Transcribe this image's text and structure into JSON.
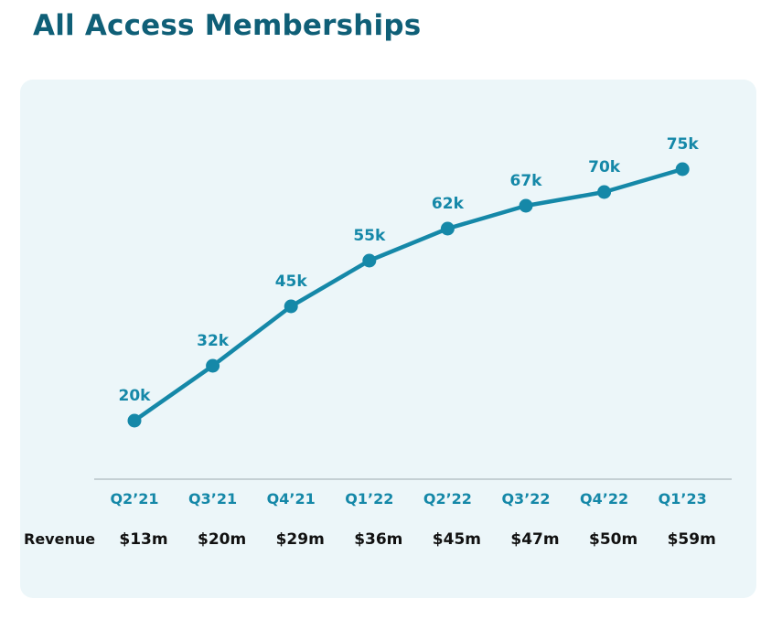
{
  "title": "All Access Memberships",
  "colors": {
    "title": "#0f5f77",
    "line": "#1588a8",
    "card_background": "#ecf6f9",
    "axis": "#b8c4c8",
    "revenue_text": "#111111"
  },
  "chart_data": {
    "type": "line",
    "title": "All Access Memberships",
    "categories": [
      "Q2’21",
      "Q3’21",
      "Q4’21",
      "Q1’22",
      "Q2’22",
      "Q3’22",
      "Q4’22",
      "Q1’23"
    ],
    "series": [
      {
        "values": [
          20,
          32,
          45,
          55,
          62,
          67,
          70,
          75
        ],
        "labels": [
          "20k",
          "32k",
          "45k",
          "55k",
          "62k",
          "67k",
          "70k",
          "75k"
        ]
      }
    ],
    "ylim": [
      8,
      80
    ],
    "grid": false,
    "legend": "none",
    "revenue_row": {
      "header": "Revenue",
      "values": [
        "$13m",
        "$20m",
        "$29m",
        "$36m",
        "$45m",
        "$47m",
        "$50m",
        "$59m"
      ]
    }
  }
}
